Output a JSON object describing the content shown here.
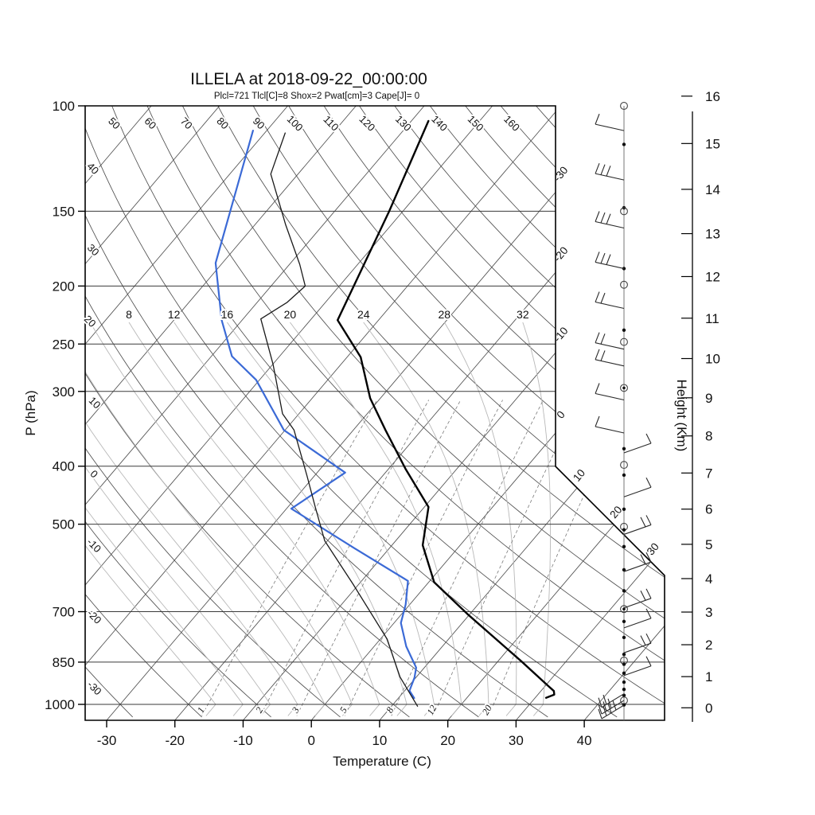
{
  "title": {
    "text": "ILLELA at 2018-09-22_00:00:00"
  },
  "subtitle": {
    "text": "Plcl=721 Tlcl[C]=8 Shox=2 Pwat[cm]=3 Cape[J]= 0",
    "color": "#a5472b"
  },
  "axes": {
    "pressure": {
      "label": "P (hPa)",
      "ticks": [
        100,
        150,
        200,
        250,
        300,
        400,
        500,
        700,
        850,
        1000
      ]
    },
    "temperature": {
      "label": "Temperature (C)",
      "ticks": [
        -30,
        -20,
        -10,
        0,
        10,
        20,
        30,
        40
      ]
    },
    "height": {
      "label": "Height (Km)",
      "ticks": [
        0,
        1,
        2,
        3,
        4,
        5,
        6,
        7,
        8,
        9,
        10,
        11,
        12,
        13,
        14,
        15,
        16
      ]
    }
  },
  "background": {
    "isotherm_values": [
      -110,
      -100,
      -90,
      -80,
      -70,
      -60,
      -50,
      -40,
      -30,
      -20,
      -10,
      0,
      10,
      20,
      30,
      40
    ],
    "isotherm_edge_labels": [
      -30,
      -20,
      -10,
      0,
      10,
      20,
      30
    ],
    "dry_adiabat_values": [
      -30,
      -20,
      -10,
      0,
      10,
      20,
      30,
      40,
      50,
      60,
      70,
      80,
      90,
      100,
      110,
      120,
      130,
      140,
      150,
      160,
      170
    ],
    "dry_adiabat_left_labels": [
      -30,
      -20,
      -10,
      0,
      10,
      20,
      30,
      40
    ],
    "dry_adiabat_top_labels": [
      50,
      60,
      70,
      80,
      90,
      100,
      110,
      120,
      130,
      140,
      150,
      160
    ],
    "moist_adiabat_values": [
      -16,
      -12,
      -8,
      -4,
      0,
      4,
      8,
      12,
      16,
      20,
      24,
      28,
      32
    ],
    "moist_adiabat_labels": [
      8,
      12,
      16,
      20,
      24,
      28,
      32
    ],
    "mixing_ratio_values": [
      1,
      2,
      3,
      5,
      8,
      12,
      20
    ]
  },
  "colors": {
    "temperature": "#000000",
    "dewpoint": "#3b6ad6",
    "parcel": "#1a1a1a",
    "grid": "#4f4f4f",
    "pressure_line": "#3a3a3a",
    "moist": "#b8b8b8",
    "mixing": "#7a7a7a",
    "frame": "#000000",
    "wind": "#2a2a2a"
  },
  "chart_data": {
    "type": "skewt_log_p_sounding",
    "station": "ILLELA",
    "datetime": "2018-09-22_00:00:00",
    "indices": {
      "Plcl": 721,
      "Tlcl_C": 8,
      "Shox": 2,
      "Pwat_cm": 3,
      "Cape_J": 0
    },
    "pressure_range_hPa": [
      100,
      1050
    ],
    "temperature_axis_range_C": [
      -33,
      45
    ],
    "series": [
      {
        "name": "temperature",
        "color_key": "temperature",
        "width": 2.4,
        "points": [
          {
            "p": 106,
            "t": -57.5
          },
          {
            "p": 150,
            "t": -52
          },
          {
            "p": 228,
            "t": -46
          },
          {
            "p": 263,
            "t": -38
          },
          {
            "p": 308,
            "t": -31.5
          },
          {
            "p": 348,
            "t": -25.3
          },
          {
            "p": 405,
            "t": -17.4
          },
          {
            "p": 468,
            "t": -9.4
          },
          {
            "p": 542,
            "t": -5.5
          },
          {
            "p": 625,
            "t": 0.8
          },
          {
            "p": 706,
            "t": 9.6
          },
          {
            "p": 848,
            "t": 23.5
          },
          {
            "p": 931,
            "t": 30.4
          },
          {
            "p": 950,
            "t": 31.9
          },
          {
            "p": 963,
            "t": 32.4
          },
          {
            "p": 975,
            "t": 31.6
          }
        ]
      },
      {
        "name": "dewpoint",
        "color_key": "dewpoint",
        "width": 2.2,
        "points": [
          {
            "p": 110,
            "t": -82
          },
          {
            "p": 183,
            "t": -71
          },
          {
            "p": 228,
            "t": -63
          },
          {
            "p": 262,
            "t": -57
          },
          {
            "p": 287,
            "t": -50.5
          },
          {
            "p": 348,
            "t": -40.2
          },
          {
            "p": 410,
            "t": -25.9
          },
          {
            "p": 471,
            "t": -29.3
          },
          {
            "p": 548,
            "t": -15.2
          },
          {
            "p": 622,
            "t": -3.2
          },
          {
            "p": 681,
            "t": -0.6
          },
          {
            "p": 731,
            "t": 1.0
          },
          {
            "p": 800,
            "t": 4.7
          },
          {
            "p": 836,
            "t": 6.9
          },
          {
            "p": 868,
            "t": 8.8
          },
          {
            "p": 902,
            "t": 9.8
          },
          {
            "p": 949,
            "t": 10.7
          },
          {
            "p": 976,
            "t": 12.3
          }
        ]
      },
      {
        "name": "parcel",
        "color_key": "parcel",
        "width": 1.3,
        "points": [
          {
            "p": 111,
            "t": -77
          },
          {
            "p": 130,
            "t": -74
          },
          {
            "p": 158,
            "t": -65.5
          },
          {
            "p": 184,
            "t": -58.5
          },
          {
            "p": 200,
            "t": -55
          },
          {
            "p": 213,
            "t": -55.6
          },
          {
            "p": 227,
            "t": -57.4
          },
          {
            "p": 270,
            "t": -50
          },
          {
            "p": 327,
            "t": -42.4
          },
          {
            "p": 348,
            "t": -38.7
          },
          {
            "p": 414,
            "t": -31.2
          },
          {
            "p": 468,
            "t": -26
          },
          {
            "p": 533,
            "t": -20.4
          },
          {
            "p": 629,
            "t": -10.9
          },
          {
            "p": 778,
            "t": 1.0
          },
          {
            "p": 900,
            "t": 7.6
          },
          {
            "p": 1007,
            "t": 13.8
          }
        ]
      }
    ],
    "wind_column": {
      "markers": [
        {
          "p": 100,
          "type": "circle"
        },
        {
          "p": 116,
          "type": "dot"
        },
        {
          "p": 148,
          "type": "dot"
        },
        {
          "p": 150,
          "type": "circle"
        },
        {
          "p": 187,
          "type": "dot"
        },
        {
          "p": 199,
          "type": "circle"
        },
        {
          "p": 237,
          "type": "dot"
        },
        {
          "p": 248,
          "type": "circle"
        },
        {
          "p": 296,
          "type": "circledot"
        },
        {
          "p": 374,
          "type": "dot"
        },
        {
          "p": 398,
          "type": "circle"
        },
        {
          "p": 414,
          "type": "dot"
        },
        {
          "p": 472,
          "type": "dot"
        },
        {
          "p": 505,
          "type": "circle"
        },
        {
          "p": 511,
          "type": "dot"
        },
        {
          "p": 545,
          "type": "dot"
        },
        {
          "p": 596,
          "type": "dot"
        },
        {
          "p": 646,
          "type": "dot"
        },
        {
          "p": 693,
          "type": "circledot"
        },
        {
          "p": 727,
          "type": "dot"
        },
        {
          "p": 773,
          "type": "dot"
        },
        {
          "p": 825,
          "type": "dot"
        },
        {
          "p": 845,
          "type": "circle"
        },
        {
          "p": 857,
          "type": "dot"
        },
        {
          "p": 887,
          "type": "dot"
        },
        {
          "p": 918,
          "type": "dot"
        },
        {
          "p": 944,
          "type": "dot"
        },
        {
          "p": 966,
          "type": "dot"
        },
        {
          "p": 985,
          "type": "circle"
        },
        {
          "p": 1002,
          "type": "dot"
        }
      ],
      "barbs": [
        {
          "p": 110,
          "side": "left",
          "ticks": 1
        },
        {
          "p": 133,
          "side": "left",
          "ticks": 3
        },
        {
          "p": 160,
          "side": "left",
          "ticks": 3
        },
        {
          "p": 187,
          "side": "left",
          "ticks": 3
        },
        {
          "p": 218,
          "side": "left",
          "ticks": 2
        },
        {
          "p": 255,
          "side": "left",
          "ticks": 2
        },
        {
          "p": 272,
          "side": "left",
          "ticks": 2
        },
        {
          "p": 310,
          "side": "left",
          "ticks": 1
        },
        {
          "p": 352,
          "side": "left",
          "ticks": 1
        },
        {
          "p": 380,
          "side": "right",
          "ticks": 1
        },
        {
          "p": 450,
          "side": "right",
          "ticks": 1
        },
        {
          "p": 520,
          "side": "right",
          "ticks": 2
        },
        {
          "p": 600,
          "side": "right",
          "ticks": 2
        },
        {
          "p": 690,
          "side": "right",
          "ticks": 2
        },
        {
          "p": 745,
          "side": "right",
          "ticks": 1
        },
        {
          "p": 820,
          "side": "right",
          "ticks": 2
        },
        {
          "p": 895,
          "side": "right",
          "ticks": 1
        },
        {
          "p": 960,
          "side": "downleft",
          "ticks": 2
        },
        {
          "p": 985,
          "side": "downleft",
          "ticks": 3
        },
        {
          "p": 1003,
          "side": "downleft",
          "ticks": 4
        }
      ]
    }
  }
}
